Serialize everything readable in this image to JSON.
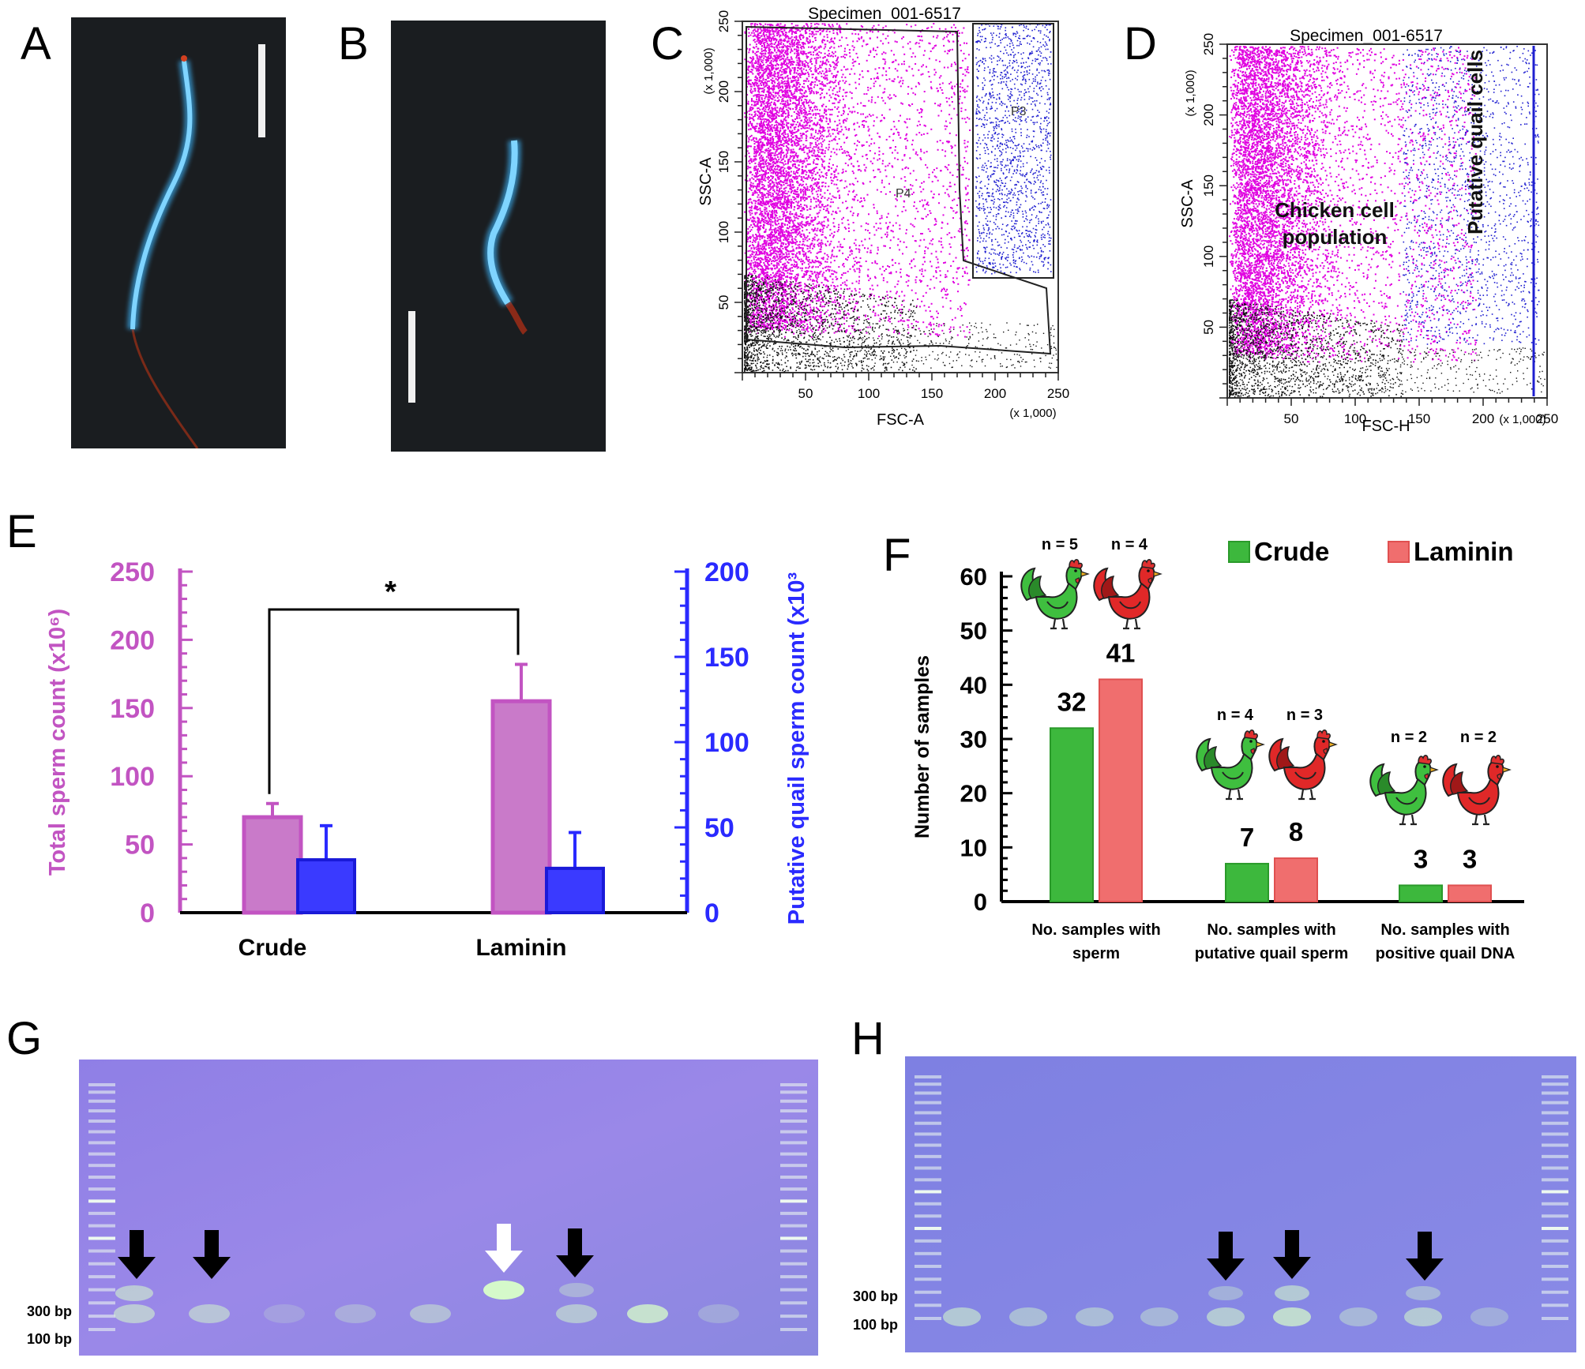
{
  "panel_labels": {
    "a": "A",
    "b": "B",
    "c": "C",
    "d": "D",
    "e": "E",
    "f": "F",
    "g": "G",
    "h": "H"
  },
  "flow_c": {
    "title": "Specimen_001-6517",
    "x_label": "FSC-A",
    "y_label": "SSC-A",
    "scale": "(x 1,000)",
    "x_ticks": [
      "50",
      "100",
      "150",
      "200",
      "250"
    ],
    "y_ticks": [
      "50",
      "100",
      "150",
      "200",
      "250"
    ],
    "gate_p4": "P4",
    "gate_p3": "P3"
  },
  "flow_d": {
    "title": "Specimen_001-6517",
    "x_label": "FSC-H",
    "y_label": "SSC-A",
    "scale": "(x 1,000)",
    "x_ticks": [
      "50",
      "100",
      "150",
      "200",
      "250"
    ],
    "y_ticks": [
      "50",
      "100",
      "150",
      "200",
      "250"
    ],
    "chicken_label_1": "Chicken cell",
    "chicken_label_2": "population",
    "quail_label": "Putative quail cells"
  },
  "colors": {
    "magenta": "#c254c2",
    "blue": "#2a2aff",
    "green": "#3db83d",
    "red": "#f06e6e",
    "flow_magenta": "#e000e0",
    "flow_blue": "#1f1fd0"
  },
  "chart_data": [
    {
      "type": "bar",
      "panel": "E",
      "categories": [
        "Crude",
        "Laminin"
      ],
      "series": [
        {
          "name": "Total sperm count (x10⁶)",
          "axis": "left",
          "values": [
            70,
            155
          ],
          "errors": [
            10,
            27
          ]
        },
        {
          "name": "Putative quail sperm count (x10³",
          "axis": "right",
          "values": [
            31,
            26
          ],
          "errors": [
            20,
            21
          ]
        }
      ],
      "ylabel_left": "Total sperm count (x10⁶)",
      "ylabel_right": "Putative quail sperm count (x10³",
      "ylim_left": [
        0,
        250
      ],
      "ylim_right": [
        0,
        200
      ],
      "yticks_left": [
        "0",
        "50",
        "100",
        "150",
        "200",
        "250"
      ],
      "yticks_right": [
        "0",
        "50",
        "100",
        "150",
        "200"
      ],
      "significance": "*"
    },
    {
      "type": "bar",
      "panel": "F",
      "categories": [
        "No. samples with sperm",
        "No. samples with putative quail sperm",
        "No. samples with positive quail DNA"
      ],
      "category_lines": [
        [
          "No. samples with",
          "sperm"
        ],
        [
          "No. samples with",
          "putative quail sperm"
        ],
        [
          "No. samples with",
          "positive quail DNA"
        ]
      ],
      "series": [
        {
          "name": "Crude",
          "values": [
            32,
            7,
            3
          ],
          "n": [
            "n = 5",
            "n = 4",
            "n = 2"
          ]
        },
        {
          "name": "Laminin",
          "values": [
            41,
            8,
            3
          ],
          "n": [
            "n = 4",
            "n = 3",
            "n = 2"
          ]
        }
      ],
      "ylabel": "Number of samples",
      "ylim": [
        0,
        60
      ],
      "yticks": [
        "0",
        "10",
        "20",
        "30",
        "40",
        "50",
        "60"
      ],
      "legend": [
        "Crude",
        "Laminin"
      ]
    }
  ],
  "gel_g": {
    "label_300": "300 bp",
    "label_100": "100 bp"
  },
  "gel_h": {
    "label_300": "300 bp",
    "label_100": "100 bp"
  }
}
